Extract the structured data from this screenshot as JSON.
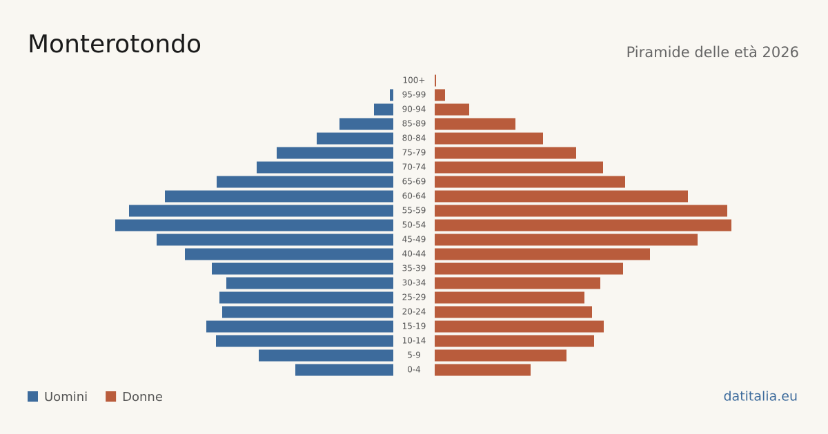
{
  "chart_data": {
    "type": "pyramid",
    "title": "Monterotondo",
    "subtitle": "Piramide delle età 2026",
    "source": "datitalia.eu",
    "categories": [
      "100+",
      "95-99",
      "90-94",
      "85-89",
      "80-84",
      "75-79",
      "70-74",
      "65-69",
      "60-64",
      "55-59",
      "50-54",
      "45-49",
      "40-44",
      "35-39",
      "30-34",
      "25-29",
      "20-24",
      "15-19",
      "10-14",
      "5-9",
      "0-4"
    ],
    "series": [
      {
        "name": "Uomini",
        "color": "#3d6b9c",
        "values": [
          0,
          5,
          28,
          78,
          111,
          169,
          198,
          256,
          331,
          383,
          403,
          343,
          302,
          263,
          242,
          252,
          248,
          271,
          257,
          195,
          142
        ]
      },
      {
        "name": "Donne",
        "color": "#b95c3c",
        "values": [
          2,
          15,
          50,
          117,
          157,
          205,
          244,
          276,
          367,
          424,
          430,
          381,
          312,
          273,
          240,
          217,
          228,
          245,
          231,
          191,
          139
        ]
      }
    ]
  }
}
